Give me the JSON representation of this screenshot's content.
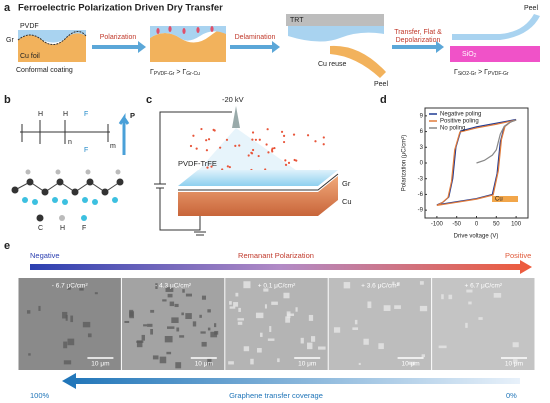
{
  "panel_a": {
    "label": "a",
    "title": "Ferroelectric Polarization Driven Dry Transfer",
    "pvdf": "PVDF",
    "gr": "Gr",
    "cu": "Cu foil",
    "caption": "Conformal coating",
    "arrow1": "Polarization",
    "ineq1": {
      "left": "Γ",
      "left_sub": "PVDF-Gr",
      "op": " > Γ",
      "right_sub": "Gr-Cu"
    },
    "arrow2": "Delamination",
    "trt": "TRT",
    "cu_reuse": "Cu reuse",
    "peel1": "Peel",
    "arrow3": [
      "Transfer, Flat &",
      "Depolarization"
    ],
    "substrate": "SiO",
    "substrate_sub": "2",
    "peel2": "Peel",
    "ineq2": {
      "left": "Γ",
      "left_sub": "SiO2-Gr",
      "op": " > Γ",
      "right_sub": "PVDF-Gr"
    }
  },
  "panel_b": {
    "label": "b",
    "h1": "H",
    "h2": "H",
    "f1": "F",
    "f2": "F",
    "n": "n",
    "m": "m",
    "p": "P",
    "legend": [
      "C",
      "H",
      "F"
    ]
  },
  "panel_c": {
    "label": "c",
    "voltage": "-20 kV",
    "film": "PVDF-TrFE",
    "gr": "Gr",
    "cu": "Cu"
  },
  "chart_data": {
    "type": "line",
    "label": "d",
    "x_label": "Drive voltage (V)",
    "y_label": "Polarization (μC/cm²)",
    "xlim": [
      -130,
      130
    ],
    "ylim": [
      -10.5,
      10.5
    ],
    "xticks": [
      -100,
      -50,
      0,
      50,
      100
    ],
    "yticks": [
      -9,
      -6,
      -3,
      0,
      3,
      6,
      9
    ],
    "legend": "upper left",
    "inset": "Cu",
    "series": [
      {
        "name": "Negative poling",
        "color": "#1f3a93",
        "x": [
          100,
          50,
          0,
          -40,
          -52,
          -60,
          -70,
          -85,
          -100,
          -50,
          0,
          40,
          52,
          60,
          70,
          85,
          100
        ],
        "values": [
          8.3,
          7.6,
          6.9,
          6.1,
          3,
          -3,
          -6.5,
          -7.5,
          -8,
          -7.4,
          -6.8,
          -6,
          -2,
          4,
          6.9,
          7.8,
          8.3
        ]
      },
      {
        "name": "Positive poling",
        "color": "#e07a3a",
        "x": [
          100,
          50,
          0,
          -42,
          -55,
          -63,
          -72,
          -87,
          -100,
          -50,
          0,
          42,
          55,
          63,
          72,
          87,
          100
        ],
        "values": [
          8.2,
          7.4,
          6.7,
          5.9,
          2.5,
          -3.5,
          -6.6,
          -7.6,
          -8.1,
          -7.5,
          -6.9,
          -6.1,
          -1.5,
          4.5,
          7,
          7.9,
          8.2
        ]
      },
      {
        "name": "No poling",
        "color": "#888888",
        "x": [
          0,
          20,
          40,
          50,
          55,
          60,
          70,
          85,
          100
        ],
        "values": [
          0,
          0.5,
          1.5,
          2.5,
          4,
          5.5,
          7,
          7.8,
          8.2
        ]
      }
    ]
  },
  "panel_e": {
    "label": "e",
    "left": "Negative",
    "middle": "Remanant Polarization",
    "right": "Positive",
    "images": [
      "- 6.7 μC/cm²",
      "- 4.3 μC/cm²",
      "+ 0.1 μC/cm²",
      "+ 3.6 μC/cm²",
      "+ 6.7 μC/cm²"
    ],
    "scale": [
      "10 μm",
      "10 μm",
      "10 μm",
      "10 μm",
      "10 μm"
    ],
    "bottom_left": "100%",
    "bottom_middle": "Graphene transfer coverage",
    "bottom_right": "0%"
  }
}
